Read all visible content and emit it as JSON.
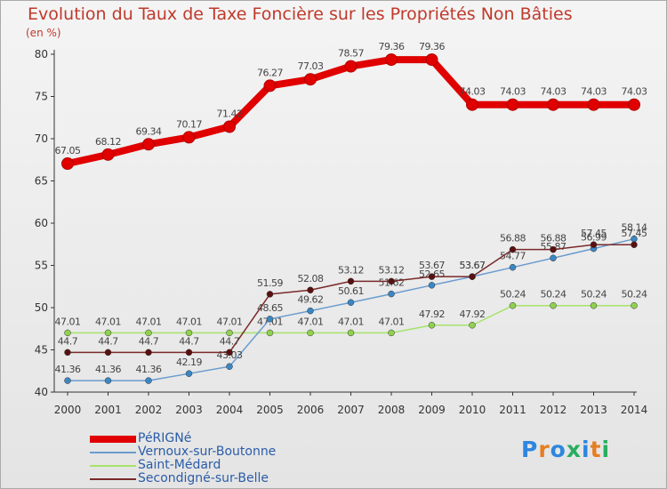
{
  "title": "Evolution du Taux de Taxe Foncière sur les Propriétés Non Bâties",
  "unit_label": "(en %)",
  "brand": {
    "letters": [
      "P",
      "r",
      "o",
      "x",
      "i",
      "t",
      "i"
    ],
    "colors": [
      "#2e86de",
      "#e67e22",
      "#2e86de",
      "#27ae60",
      "#2e86de",
      "#e67e22",
      "#27ae60"
    ]
  },
  "chart_data": {
    "type": "line",
    "categories": [
      "2000",
      "2001",
      "2002",
      "2003",
      "2004",
      "2005",
      "2006",
      "2007",
      "2008",
      "2009",
      "2010",
      "2011",
      "2012",
      "2013",
      "2014"
    ],
    "ylim": [
      40,
      80
    ],
    "yticks": [
      40,
      45,
      50,
      55,
      60,
      65,
      70,
      75,
      80
    ],
    "grid": false,
    "legend_position": "bottom-left",
    "series": [
      {
        "name": "PéRIGNé",
        "color": "#e00000",
        "marker": "#e00000",
        "values": [
          67.05,
          68.12,
          69.34,
          70.17,
          71.42,
          76.27,
          77.03,
          78.57,
          79.36,
          79.36,
          74.03,
          74.03,
          74.03,
          74.03,
          74.03
        ],
        "labels": [
          "67.05",
          "68.12",
          "69.34",
          "70.17",
          "71.42",
          "76.27",
          "77.03",
          "78.57",
          "79.36",
          "79.36",
          "74.03",
          "74.03",
          "74.03",
          "74.03",
          "74.03"
        ]
      },
      {
        "name": "Vernoux-sur-Boutonne",
        "color": "#6a9ccf",
        "marker": "#3b87c4",
        "values": [
          41.36,
          41.36,
          41.36,
          42.19,
          43.03,
          48.65,
          49.62,
          50.61,
          51.62,
          52.65,
          53.67,
          54.77,
          55.87,
          56.99,
          58.14
        ],
        "labels": [
          "41.36",
          "41.36",
          "41.36",
          "42.19",
          "43.03",
          "48.65",
          "49.62",
          "50.61",
          "51.62",
          "52.65",
          "53.67",
          "54.77",
          "55.87",
          "56.99",
          "58.14"
        ]
      },
      {
        "name": "Saint-Médard",
        "color": "#a6e36a",
        "marker": "#8fd14f",
        "values": [
          47.01,
          47.01,
          47.01,
          47.01,
          47.01,
          47.01,
          47.01,
          47.01,
          47.01,
          47.92,
          47.92,
          50.24,
          50.24,
          50.24,
          50.24
        ],
        "labels": [
          "47.01",
          "47.01",
          "47.01",
          "47.01",
          "47.01",
          "47.01",
          "47.01",
          "47.01",
          "47.01",
          "47.92",
          "47.92",
          "50.24",
          "50.24",
          "50.24",
          "50.24"
        ]
      },
      {
        "name": "Secondigné-sur-Belle",
        "color": "#7a2a2a",
        "marker": "#5a1010",
        "values": [
          44.7,
          44.7,
          44.7,
          44.7,
          44.7,
          51.59,
          52.08,
          53.12,
          53.12,
          53.67,
          53.67,
          56.88,
          56.88,
          57.45,
          57.45
        ],
        "labels": [
          "44.7",
          "44.7",
          "44.7",
          "44.7",
          "44.7",
          "51.59",
          "52.08",
          "53.12",
          "53.12",
          "53.67",
          "53.67",
          "56.88",
          "56.88",
          "57.45",
          "57.45"
        ]
      }
    ]
  }
}
